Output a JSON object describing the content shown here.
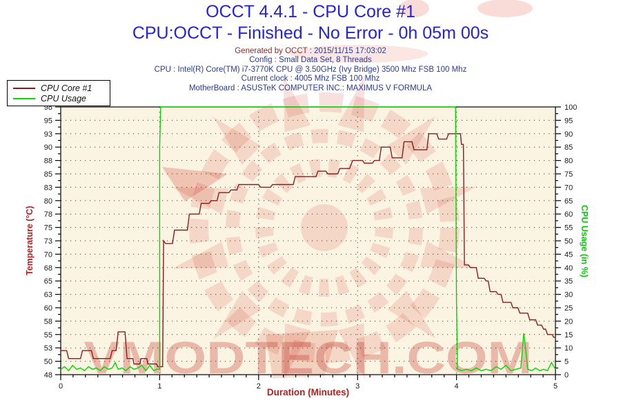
{
  "page": {
    "title": "OCCT 4.4.1 - CPU Core #1",
    "subtitle": "CPU:OCCT - Finished - No Error - 0h 05m 00s"
  },
  "header": {
    "generated_label": "Generated by OCCT",
    "generated_value": " : 2015/11/15 17:03:02",
    "lines": [
      "Config : Small Data Set, 8 Threads",
      "CPU : Intel(R) Core(TM) i7-3770K CPU @ 3.50GHz (Ivy Bridge) 3500 Mhz FSB 100 Mhz",
      "Current clock : 4005 Mhz FSB 100 Mhz",
      "MotherBoard : ASUSTeK COMPUTER INC.: MAXIMUS V FORMULA"
    ]
  },
  "watermark": {
    "text": "VMODTECH.COM"
  },
  "colors": {
    "title_blue": "#2323DC",
    "header_navy": "#2A3B96",
    "generated_maroon": "#8E2A2A",
    "axis_title_red": "#B22222",
    "axis_title_green": "#00CC00",
    "plot_background": "#FCF4E3",
    "grid_dot": "#444444",
    "tick_label": "#1A1A1A",
    "watermark_red": "rgba(208,68,52,0.16)",
    "watermark_text": "rgba(190,45,35,0.30)"
  },
  "chart_data": {
    "type": "line",
    "title": "OCCT 4.4.1 - CPU Core #1",
    "x_axis": {
      "label": "Duration (Minutes)",
      "min": 0,
      "max": 5,
      "major_ticks": [
        0,
        1,
        2,
        3,
        4,
        5
      ],
      "minor_subdivisions": 8,
      "grid_at": [
        1,
        2,
        3,
        4
      ]
    },
    "y_left": {
      "label": "Temperature (°C)",
      "min": 48,
      "max": 98,
      "tick_labels": [
        48,
        50,
        53,
        55,
        58,
        60,
        63,
        65,
        68,
        70,
        73,
        75,
        78,
        80,
        83,
        85,
        88,
        90,
        93,
        95,
        98
      ]
    },
    "y_right": {
      "label": "CPU Usage (in %)",
      "min": 0,
      "max": 100,
      "tick_labels": [
        0,
        5,
        10,
        15,
        20,
        25,
        30,
        35,
        40,
        45,
        50,
        55,
        60,
        65,
        70,
        75,
        80,
        85,
        90,
        95,
        100
      ]
    },
    "grid": "dotted",
    "legend_position": "top-left",
    "series": [
      {
        "name": "CPU Core #1",
        "axis": "left",
        "color": "#8B1C1C",
        "points": [
          [
            0.0,
            52.5
          ],
          [
            0.06,
            52.5
          ],
          [
            0.08,
            51
          ],
          [
            0.2,
            51
          ],
          [
            0.22,
            52.5
          ],
          [
            0.31,
            52.5
          ],
          [
            0.33,
            51
          ],
          [
            0.5,
            51
          ],
          [
            0.52,
            52.5
          ],
          [
            0.56,
            52.5
          ],
          [
            0.58,
            56
          ],
          [
            0.65,
            56
          ],
          [
            0.67,
            51
          ],
          [
            0.73,
            51
          ],
          [
            0.74,
            50
          ],
          [
            0.8,
            50
          ],
          [
            0.81,
            51
          ],
          [
            0.87,
            51
          ],
          [
            0.88,
            50
          ],
          [
            0.97,
            50
          ],
          [
            0.98,
            49.5
          ],
          [
            1.03,
            49.5
          ],
          [
            1.04,
            73
          ],
          [
            1.06,
            72.5
          ],
          [
            1.13,
            72.5
          ],
          [
            1.15,
            75
          ],
          [
            1.28,
            75
          ],
          [
            1.3,
            78
          ],
          [
            1.4,
            78
          ],
          [
            1.42,
            80
          ],
          [
            1.5,
            80
          ],
          [
            1.52,
            80.5
          ],
          [
            1.58,
            80.5
          ],
          [
            1.6,
            82
          ],
          [
            1.7,
            82
          ],
          [
            1.72,
            82.5
          ],
          [
            1.78,
            82.5
          ],
          [
            1.8,
            83.5
          ],
          [
            2.0,
            83.5
          ],
          [
            2.02,
            83
          ],
          [
            2.12,
            83
          ],
          [
            2.14,
            83.5
          ],
          [
            2.35,
            83.5
          ],
          [
            2.37,
            85
          ],
          [
            2.58,
            85
          ],
          [
            2.6,
            86
          ],
          [
            2.68,
            86
          ],
          [
            2.7,
            85.5
          ],
          [
            2.8,
            85.5
          ],
          [
            2.82,
            86.5
          ],
          [
            2.92,
            86.5
          ],
          [
            2.95,
            88
          ],
          [
            3.05,
            88
          ],
          [
            3.07,
            87.5
          ],
          [
            3.15,
            87.5
          ],
          [
            3.17,
            88
          ],
          [
            3.22,
            88
          ],
          [
            3.24,
            90.5
          ],
          [
            3.33,
            90.5
          ],
          [
            3.35,
            88.5
          ],
          [
            3.45,
            88.5
          ],
          [
            3.47,
            91.5
          ],
          [
            3.55,
            91.5
          ],
          [
            3.57,
            90
          ],
          [
            3.7,
            90
          ],
          [
            3.72,
            93
          ],
          [
            3.8,
            93
          ],
          [
            3.82,
            92
          ],
          [
            3.9,
            92
          ],
          [
            3.92,
            93
          ],
          [
            4.04,
            93
          ],
          [
            4.05,
            91
          ],
          [
            4.07,
            91
          ],
          [
            4.08,
            68.5
          ],
          [
            4.12,
            68.5
          ],
          [
            4.14,
            68
          ],
          [
            4.2,
            68
          ],
          [
            4.22,
            66
          ],
          [
            4.28,
            66
          ],
          [
            4.3,
            65.5
          ],
          [
            4.32,
            65.5
          ],
          [
            4.34,
            63.5
          ],
          [
            4.4,
            63.5
          ],
          [
            4.42,
            63
          ],
          [
            4.45,
            63
          ],
          [
            4.47,
            61.5
          ],
          [
            4.55,
            61.5
          ],
          [
            4.57,
            60.5
          ],
          [
            4.62,
            60.5
          ],
          [
            4.64,
            59.5
          ],
          [
            4.72,
            59.5
          ],
          [
            4.74,
            58.25
          ],
          [
            4.8,
            58.25
          ],
          [
            4.82,
            57.25
          ],
          [
            4.86,
            57.25
          ],
          [
            4.88,
            56.5
          ],
          [
            4.9,
            56.5
          ],
          [
            4.92,
            55.5
          ],
          [
            4.97,
            55.5
          ],
          [
            4.98,
            55
          ],
          [
            5.0,
            55
          ]
        ]
      },
      {
        "name": "CPU Usage",
        "axis": "right",
        "color": "#00D800",
        "points": [
          [
            0.0,
            2
          ],
          [
            0.04,
            3
          ],
          [
            0.08,
            1.5
          ],
          [
            0.12,
            3.5
          ],
          [
            0.16,
            2
          ],
          [
            0.2,
            2.5
          ],
          [
            0.24,
            1.5
          ],
          [
            0.28,
            3
          ],
          [
            0.32,
            2
          ],
          [
            0.36,
            2.5
          ],
          [
            0.4,
            1.5
          ],
          [
            0.44,
            3
          ],
          [
            0.48,
            2
          ],
          [
            0.52,
            2.5
          ],
          [
            0.55,
            4.5
          ],
          [
            0.58,
            2
          ],
          [
            0.62,
            2.5
          ],
          [
            0.66,
            1.5
          ],
          [
            0.7,
            3
          ],
          [
            0.74,
            2
          ],
          [
            0.78,
            2.5
          ],
          [
            0.82,
            3.5
          ],
          [
            0.86,
            1.5
          ],
          [
            0.9,
            3.5
          ],
          [
            0.94,
            1.5
          ],
          [
            0.97,
            2
          ],
          [
            1.0,
            2
          ],
          [
            1.0,
            85
          ],
          [
            1.01,
            100
          ],
          [
            3.99,
            100
          ],
          [
            4.0,
            27
          ],
          [
            4.01,
            2
          ],
          [
            4.05,
            1.5
          ],
          [
            4.1,
            2
          ],
          [
            4.15,
            1.5
          ],
          [
            4.2,
            2.5
          ],
          [
            4.25,
            1.5
          ],
          [
            4.3,
            2
          ],
          [
            4.35,
            1.5
          ],
          [
            4.4,
            3
          ],
          [
            4.45,
            2
          ],
          [
            4.5,
            3.5
          ],
          [
            4.55,
            1.5
          ],
          [
            4.6,
            2
          ],
          [
            4.65,
            2.5
          ],
          [
            4.68,
            15.5
          ],
          [
            4.7,
            9
          ],
          [
            4.72,
            2
          ],
          [
            4.76,
            1.5
          ],
          [
            4.8,
            2.5
          ],
          [
            4.84,
            1.5
          ],
          [
            4.88,
            2
          ],
          [
            4.92,
            1.5
          ],
          [
            4.96,
            4.5
          ],
          [
            5.0,
            2
          ]
        ]
      }
    ]
  }
}
